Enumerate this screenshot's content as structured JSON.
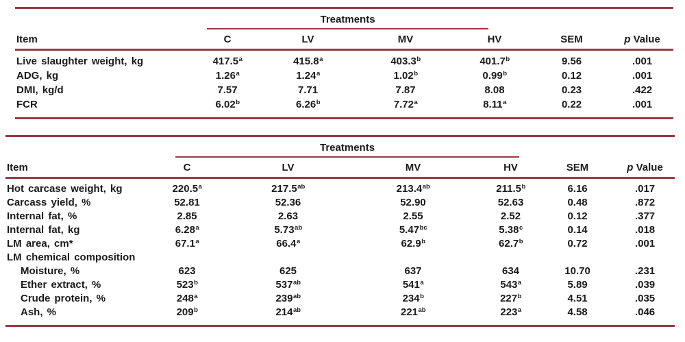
{
  "styles": {
    "rule_color": "#993a44",
    "text_color": "#1a1a1a",
    "background": "#ffffff"
  },
  "tables": [
    {
      "name": "growth-performance",
      "spanner_label": "Treatments",
      "columns": {
        "item": "Item",
        "c": "C",
        "lv": "LV",
        "mv": "MV",
        "hv": "HV",
        "sem": "SEM",
        "p_italic": "p",
        "p_rest": "Value"
      },
      "rows": [
        {
          "item": "Live slaughter weight, kg",
          "indent": false,
          "section": false,
          "values": [
            {
              "v": "417.5",
              "sup": "a"
            },
            {
              "v": "415.8",
              "sup": "a"
            },
            {
              "v": "403.3",
              "sup": "b"
            },
            {
              "v": "401.7",
              "sup": "b"
            }
          ],
          "sem": "9.56",
          "p": ".001"
        },
        {
          "item": "ADG, kg",
          "indent": false,
          "section": false,
          "values": [
            {
              "v": "1.26",
              "sup": "a"
            },
            {
              "v": "1.24",
              "sup": "a"
            },
            {
              "v": "1.02",
              "sup": "b"
            },
            {
              "v": "0.99",
              "sup": "b"
            }
          ],
          "sem": "0.12",
          "p": ".001"
        },
        {
          "item": "DMI, kg/d",
          "indent": false,
          "section": false,
          "values": [
            {
              "v": "7.57"
            },
            {
              "v": "7.71"
            },
            {
              "v": "7.87"
            },
            {
              "v": "8.08"
            }
          ],
          "sem": "0.23",
          "p": ".422"
        },
        {
          "item": "FCR",
          "indent": false,
          "section": false,
          "values": [
            {
              "v": "6.02",
              "sup": "b"
            },
            {
              "v": "6.26",
              "sup": "b"
            },
            {
              "v": "7.72",
              "sup": "a"
            },
            {
              "v": "8.11",
              "sup": "a"
            }
          ],
          "sem": "0.22",
          "p": ".001"
        }
      ]
    },
    {
      "name": "carcass-traits",
      "spanner_label": "Treatments",
      "columns": {
        "item": "Item",
        "c": "C",
        "lv": "LV",
        "mv": "MV",
        "hv": "HV",
        "sem": "SEM",
        "p_italic": "p",
        "p_rest": "Value"
      },
      "rows": [
        {
          "item": "Hot carcase weight, kg",
          "indent": false,
          "section": false,
          "values": [
            {
              "v": "220.5",
              "sup": "a"
            },
            {
              "v": "217.5",
              "sup": "ab"
            },
            {
              "v": "213.4",
              "sup": "ab"
            },
            {
              "v": "211.5",
              "sup": "b"
            }
          ],
          "sem": "6.16",
          "p": ".017"
        },
        {
          "item": "Carcass yield, %",
          "indent": false,
          "section": false,
          "values": [
            {
              "v": "52.81"
            },
            {
              "v": "52.36"
            },
            {
              "v": "52.90"
            },
            {
              "v": "52.63"
            }
          ],
          "sem": "0.48",
          "p": ".872"
        },
        {
          "item": "Internal fat, %",
          "indent": false,
          "section": false,
          "values": [
            {
              "v": "2.85"
            },
            {
              "v": "2.63"
            },
            {
              "v": "2.55"
            },
            {
              "v": "2.52"
            }
          ],
          "sem": "0.12",
          "p": ".377"
        },
        {
          "item": "Internal fat, kg",
          "indent": false,
          "section": false,
          "values": [
            {
              "v": "6.28",
              "sup": "a"
            },
            {
              "v": "5.73",
              "sup": "ab"
            },
            {
              "v": "5.47",
              "sup": "bc"
            },
            {
              "v": "5.38",
              "sup": "c"
            }
          ],
          "sem": "0.14",
          "p": ".018"
        },
        {
          "item": "LM area, cm*",
          "indent": false,
          "section": false,
          "values": [
            {
              "v": "67.1",
              "sup": "a"
            },
            {
              "v": "66.4",
              "sup": "a"
            },
            {
              "v": "62.9",
              "sup": "b"
            },
            {
              "v": "62.7",
              "sup": "b"
            }
          ],
          "sem": "0.72",
          "p": ".001"
        },
        {
          "item": "LM chemical composition",
          "indent": false,
          "section": true,
          "values": [
            null,
            null,
            null,
            null
          ],
          "sem": "",
          "p": ""
        },
        {
          "item": "Moisture, %",
          "indent": true,
          "section": false,
          "values": [
            {
              "v": "623"
            },
            {
              "v": "625"
            },
            {
              "v": "637"
            },
            {
              "v": "634"
            }
          ],
          "sem": "10.70",
          "p": ".231"
        },
        {
          "item": "Ether extract, %",
          "indent": true,
          "section": false,
          "values": [
            {
              "v": "523",
              "sup": "b"
            },
            {
              "v": "537",
              "sup": "ab"
            },
            {
              "v": "541",
              "sup": "a"
            },
            {
              "v": "543",
              "sup": "a"
            }
          ],
          "sem": "5.89",
          "p": ".039"
        },
        {
          "item": "Crude protein, %",
          "indent": true,
          "section": false,
          "values": [
            {
              "v": "248",
              "sup": "a"
            },
            {
              "v": "239",
              "sup": "ab"
            },
            {
              "v": "234",
              "sup": "b"
            },
            {
              "v": "227",
              "sup": "b"
            }
          ],
          "sem": "4.51",
          "p": ".035"
        },
        {
          "item": "Ash, %",
          "indent": true,
          "section": false,
          "values": [
            {
              "v": "209",
              "sup": "b"
            },
            {
              "v": "214",
              "sup": "ab"
            },
            {
              "v": "221",
              "sup": "ab"
            },
            {
              "v": "223",
              "sup": "a"
            }
          ],
          "sem": "4.58",
          "p": ".046"
        }
      ]
    }
  ]
}
